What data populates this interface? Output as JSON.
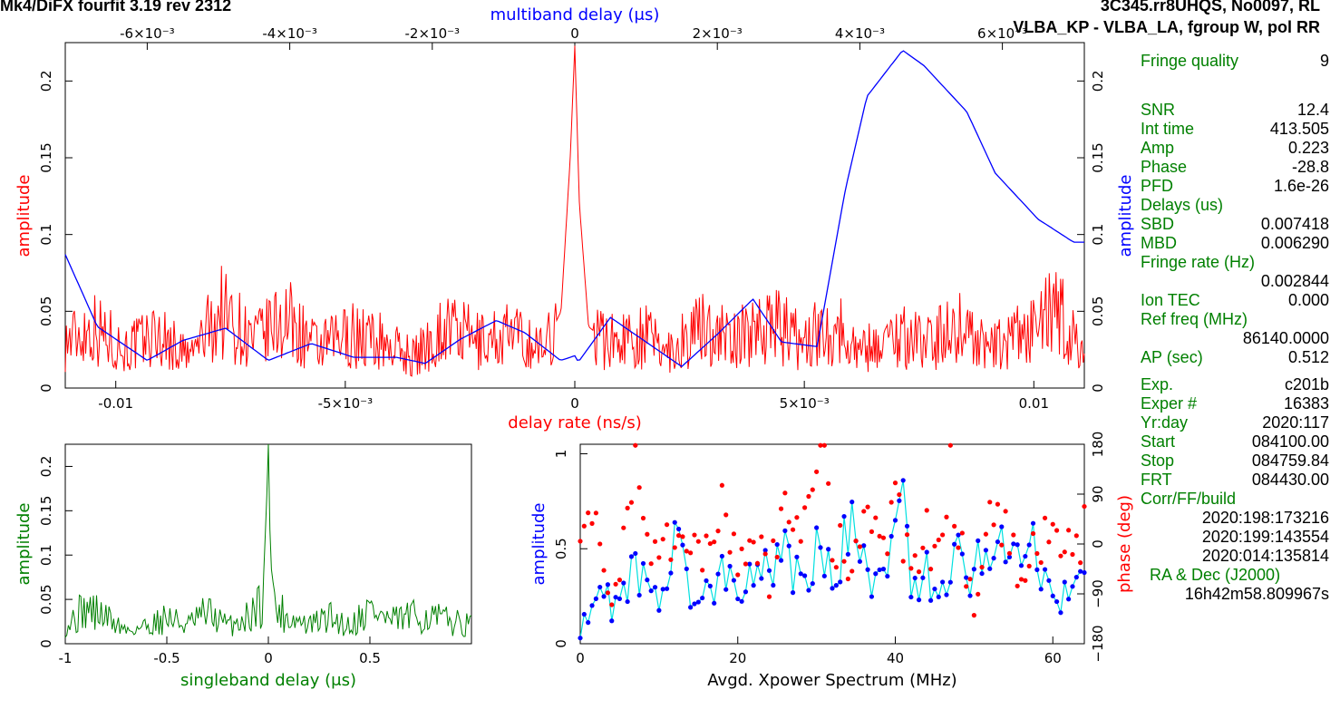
{
  "header": {
    "left_title": "Mk4/DiFX fourfit 3.19 rev 2312",
    "right_title": "3C345.rr8UHQS, No0097, RL",
    "baseline_line": "VLBA_KP - VLBA_LA, fgroup W, pol RR"
  },
  "colors": {
    "red": "#ff0000",
    "blue": "#0000ff",
    "green": "#008000",
    "cyan": "#00e0e0",
    "black": "#000000"
  },
  "side_panel": {
    "fringe_quality_label": "Fringe quality",
    "fringe_quality": "9",
    "snr_label": "SNR",
    "snr": "12.4",
    "int_time_label": "Int time",
    "int_time": "413.505",
    "amp_label": "Amp",
    "amp": "0.223",
    "phase_label": "Phase",
    "phase": "-28.8",
    "pfd_label": "PFD",
    "pfd": "1.6e-26",
    "delays_label": "Delays (us)",
    "sbd_label": "SBD",
    "sbd": "0.007418",
    "mbd_label": "MBD",
    "mbd": "0.006290",
    "fringe_rate_label": "Fringe rate (Hz)",
    "fringe_rate": "0.002844",
    "ion_tec_label": "Ion TEC",
    "ion_tec": "0.000",
    "ref_freq_label": "Ref freq (MHz)",
    "ref_freq": "86140.0000",
    "ap_label": "AP (sec)",
    "ap": "0.512",
    "exp_label": "Exp.",
    "exp": "c201b",
    "exper_label": "Exper #",
    "exper": "16383",
    "yrday_label": "Yr:day",
    "yrday": "2020:117",
    "start_label": "Start",
    "start": "084100.00",
    "stop_label": "Stop",
    "stop": "084759.84",
    "frt_label": "FRT",
    "frt": "084430.00",
    "corr_label": "Corr/FF/build",
    "corr_1": "2020:198:173216",
    "corr_2": "2020:199:143554",
    "corr_3": "2020:014:135814",
    "radec_label": "RA & Dec (J2000)",
    "ra": "16h42m58.809967s"
  },
  "chart_data": [
    {
      "type": "line",
      "name": "delay-rate / multiband-delay panel",
      "xlabel": "delay rate (ns/s)",
      "xlabel_top": "multiband delay (μs)",
      "ylabel": "amplitude",
      "ylabel_right": "amplitude",
      "xlim": [
        -0.0111,
        0.0111
      ],
      "xlim_top": [
        -0.00715,
        0.00715
      ],
      "ylim": [
        0,
        0.225
      ],
      "x_ticks": [
        "-0.01",
        "-5×10⁻³",
        "0",
        "5×10⁻³",
        "0.01"
      ],
      "x_ticks_top": [
        "-6×10⁻³",
        "-4×10⁻³",
        "-2×10⁻³",
        "0",
        "2×10⁻³",
        "4×10⁻³",
        "6×10⁻³"
      ],
      "y_ticks": [
        "0",
        "0.05",
        "0.1",
        "0.15",
        "0.2"
      ],
      "series": [
        {
          "color": "#ff0000",
          "x": [
            -0.0111,
            -0.0105,
            -0.0098,
            -0.0091,
            -0.0084,
            -0.0077,
            -0.007,
            -0.0063,
            -0.0056,
            -0.0049,
            -0.0042,
            -0.0035,
            -0.0028,
            -0.0021,
            -0.0014,
            -0.0007,
            -0.0003,
            -0.0001,
            0.0,
            0.0001,
            0.0003,
            0.0007,
            0.0014,
            0.0021,
            0.0028,
            0.0035,
            0.0042,
            0.0049,
            0.0056,
            0.0063,
            0.007,
            0.0077,
            0.0084,
            0.0091,
            0.0098,
            0.0105,
            0.0111
          ],
          "y": [
            0.03,
            0.04,
            0.025,
            0.035,
            0.02,
            0.05,
            0.03,
            0.045,
            0.025,
            0.035,
            0.03,
            0.02,
            0.04,
            0.03,
            0.035,
            0.025,
            0.05,
            0.15,
            0.223,
            0.12,
            0.04,
            0.03,
            0.035,
            0.025,
            0.04,
            0.03,
            0.045,
            0.03,
            0.04,
            0.025,
            0.035,
            0.03,
            0.04,
            0.025,
            0.035,
            0.05,
            0.02
          ]
        },
        {
          "color": "#0000ff",
          "x_top": [
            -0.00715,
            -0.0067,
            -0.006,
            -0.0055,
            -0.0049,
            -0.0043,
            -0.0037,
            -0.0031,
            -0.0025,
            -0.0021,
            -0.0016,
            -0.0011,
            -0.0007,
            -0.0002,
            0.0,
            5e-05,
            0.0005,
            0.001,
            0.0015,
            0.002,
            0.0025,
            0.0029,
            0.0034,
            0.0038,
            0.0041,
            0.0046,
            0.0049,
            0.0055,
            0.0059,
            0.0065,
            0.007,
            0.00715
          ],
          "y": [
            0.087,
            0.04,
            0.018,
            0.031,
            0.039,
            0.018,
            0.029,
            0.02,
            0.02,
            0.016,
            0.032,
            0.044,
            0.036,
            0.018,
            0.021,
            0.017,
            0.046,
            0.03,
            0.014,
            0.035,
            0.058,
            0.03,
            0.027,
            0.13,
            0.19,
            0.22,
            0.21,
            0.18,
            0.14,
            0.11,
            0.095,
            0.095
          ]
        }
      ]
    },
    {
      "type": "line",
      "name": "singleband delay panel",
      "xlabel": "singleband delay (μs)",
      "ylabel": "amplitude",
      "xlim": [
        -1,
        1
      ],
      "ylim": [
        0,
        0.225
      ],
      "x_ticks": [
        "-1",
        "-0.5",
        "0",
        "0.5"
      ],
      "y_ticks": [
        "0",
        "0.05",
        "0.1",
        "0.15",
        "0.2"
      ],
      "series": [
        {
          "color": "#008000",
          "x": [
            -1,
            -0.9,
            -0.8,
            -0.7,
            -0.6,
            -0.5,
            -0.4,
            -0.3,
            -0.2,
            -0.1,
            -0.03,
            -0.01,
            0.0,
            0.01,
            0.03,
            0.1,
            0.2,
            0.3,
            0.4,
            0.5,
            0.6,
            0.7,
            0.8,
            0.9,
            1
          ],
          "y": [
            0.02,
            0.04,
            0.03,
            0.015,
            0.02,
            0.03,
            0.02,
            0.035,
            0.02,
            0.03,
            0.05,
            0.15,
            0.225,
            0.1,
            0.04,
            0.03,
            0.02,
            0.03,
            0.02,
            0.04,
            0.025,
            0.03,
            0.03,
            0.025,
            0.02
          ]
        }
      ]
    },
    {
      "type": "scatter",
      "name": "cross-power spectrum panel",
      "xlabel": "Avgd. Xpower Spectrum (MHz)",
      "ylabel": "amplitude",
      "ylabel_right": "phase (deg)",
      "xlim": [
        0,
        64
      ],
      "ylim": [
        0,
        1.05
      ],
      "ylim_right": [
        -180,
        180
      ],
      "x_ticks": [
        "0",
        "20",
        "40",
        "60"
      ],
      "y_ticks": [
        "0",
        "0.5",
        "1"
      ],
      "y_ticks_right": [
        "−180",
        "−90",
        "0",
        "90",
        "180"
      ],
      "series": [
        {
          "color": "#0000ff",
          "x": [
            0,
            2,
            4,
            6,
            8,
            10,
            12,
            14,
            16,
            18,
            20,
            22,
            24,
            26,
            28,
            30,
            32,
            34,
            36,
            38,
            40,
            41,
            42,
            44,
            46,
            48,
            50,
            52,
            54,
            56,
            57,
            58,
            60,
            62,
            64
          ],
          "y": [
            0.05,
            0.3,
            0.2,
            0.35,
            0.4,
            0.25,
            0.5,
            0.3,
            0.25,
            0.45,
            0.35,
            0.3,
            0.4,
            0.55,
            0.3,
            0.45,
            0.35,
            0.6,
            0.45,
            0.3,
            0.5,
            0.85,
            0.4,
            0.35,
            0.3,
            0.45,
            0.4,
            0.55,
            0.5,
            0.45,
            0.75,
            0.4,
            0.2,
            0.25,
            0.35
          ]
        },
        {
          "color": "#ff0000",
          "x": [
            0,
            2,
            4,
            6,
            7,
            8,
            10,
            12,
            14,
            16,
            18,
            20,
            22,
            24,
            26,
            28,
            30,
            31,
            32,
            34,
            36,
            38,
            40,
            42,
            44,
            46,
            47,
            48,
            50,
            52,
            54,
            56,
            58,
            60,
            62,
            64
          ],
          "y": [
            60,
            20,
            -80,
            10,
            150,
            30,
            -40,
            40,
            -20,
            0,
            60,
            -60,
            30,
            -80,
            50,
            0,
            160,
            165,
            20,
            -40,
            40,
            -20,
            80,
            -60,
            10,
            -30,
            140,
            20,
            -90,
            30,
            10,
            -50,
            0,
            40,
            -20,
            30
          ]
        }
      ]
    }
  ]
}
